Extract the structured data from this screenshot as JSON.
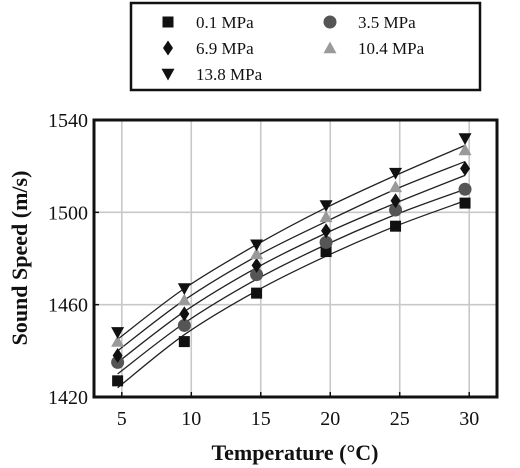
{
  "chart_data": {
    "type": "scatter",
    "xlabel": "Temperature (°C)",
    "ylabel": "Sound Speed (m/s)",
    "xlim": [
      3,
      32
    ],
    "ylim": [
      1420,
      1540
    ],
    "xticks": [
      5,
      10,
      15,
      20,
      25,
      30
    ],
    "yticks": [
      1420,
      1460,
      1500,
      1540
    ],
    "grid": true,
    "legend_position": "top, outside the plot",
    "x": [
      4.7,
      9.5,
      14.7,
      19.7,
      24.7,
      29.7
    ],
    "series": [
      {
        "name": "0.1 MPa",
        "marker": "square",
        "color": "#111111",
        "values": [
          1427,
          1444,
          1465,
          1483,
          1494,
          1504
        ],
        "fit": [
          1424,
          1447,
          1466,
          1481,
          1494,
          1505
        ]
      },
      {
        "name": "3.5 MPa",
        "marker": "circle",
        "color": "#555555",
        "values": [
          1435,
          1451,
          1473,
          1487,
          1501,
          1510
        ],
        "fit": [
          1430,
          1452,
          1471,
          1486,
          1499,
          1510
        ]
      },
      {
        "name": "6.9 MPa",
        "marker": "diamond",
        "color": "#111111",
        "values": [
          1438,
          1456,
          1477,
          1492,
          1505,
          1519
        ],
        "fit": [
          1435,
          1457,
          1476,
          1491,
          1504,
          1516
        ]
      },
      {
        "name": "10.4 MPa",
        "marker": "triangle-up",
        "color": "#9a9a9a",
        "values": [
          1444,
          1462,
          1482,
          1498,
          1511,
          1527
        ],
        "fit": [
          1440,
          1462,
          1481,
          1496,
          1510,
          1522
        ]
      },
      {
        "name": "13.8 MPa",
        "marker": "triangle-down",
        "color": "#111111",
        "values": [
          1448,
          1467,
          1486,
          1503,
          1517,
          1532
        ],
        "fit": [
          1445,
          1467,
          1486,
          1502,
          1516,
          1529
        ]
      }
    ]
  }
}
